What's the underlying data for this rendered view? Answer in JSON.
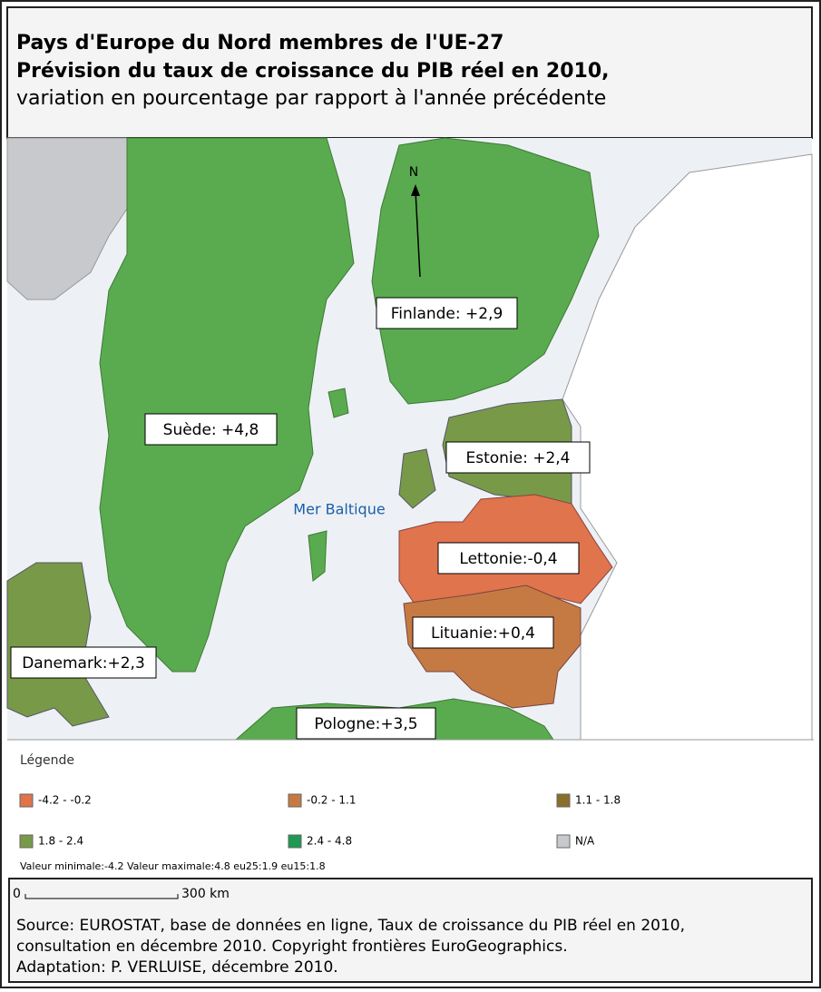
{
  "header": {
    "title_line1": "Pays d'Europe du Nord membres de l'UE-27",
    "title_line2": "Prévision du taux de croissance du PIB réel en 2010,",
    "subtitle": "variation en pourcentage par rapport à l'année précédente"
  },
  "map": {
    "north": "N",
    "sea": "Mer Baltique",
    "labels": [
      "Finlande: +2,9",
      "Suède: +4,8",
      "Estonie: +2,4",
      "Lettonie:-0,4",
      "Lituanie:+0,4",
      "Danemark:+2,3",
      "Pologne:+3,5"
    ]
  },
  "legend": {
    "title": "Légende",
    "items": [
      {
        "range": "-4.2 - -0.2",
        "color": "#e0744c"
      },
      {
        "range": "-0.2 - 1.1",
        "color": "#c67a43"
      },
      {
        "range": "1.1 - 1.8",
        "color": "#8a6f2c"
      },
      {
        "range": "1.8 - 2.4",
        "color": "#789a48"
      },
      {
        "range": "2.4 - 4.8",
        "color": "#1e9a52"
      },
      {
        "range": "N/A",
        "color": "#c8c9cd"
      }
    ],
    "stats": "Valeur minimale:-4.2 Valeur maximale:4.8 eu25:1.9 eu15:1.8"
  },
  "scale": {
    "start": "0",
    "end": "300 km"
  },
  "source": [
    "Source: EUROSTAT, base de données en ligne, Taux de croissance du PIB réel en 2010,",
    "consultation en décembre 2010. Copyright frontières EuroGeographics.",
    "Adaptation: P. VERLUISE, décembre 2010."
  ]
}
